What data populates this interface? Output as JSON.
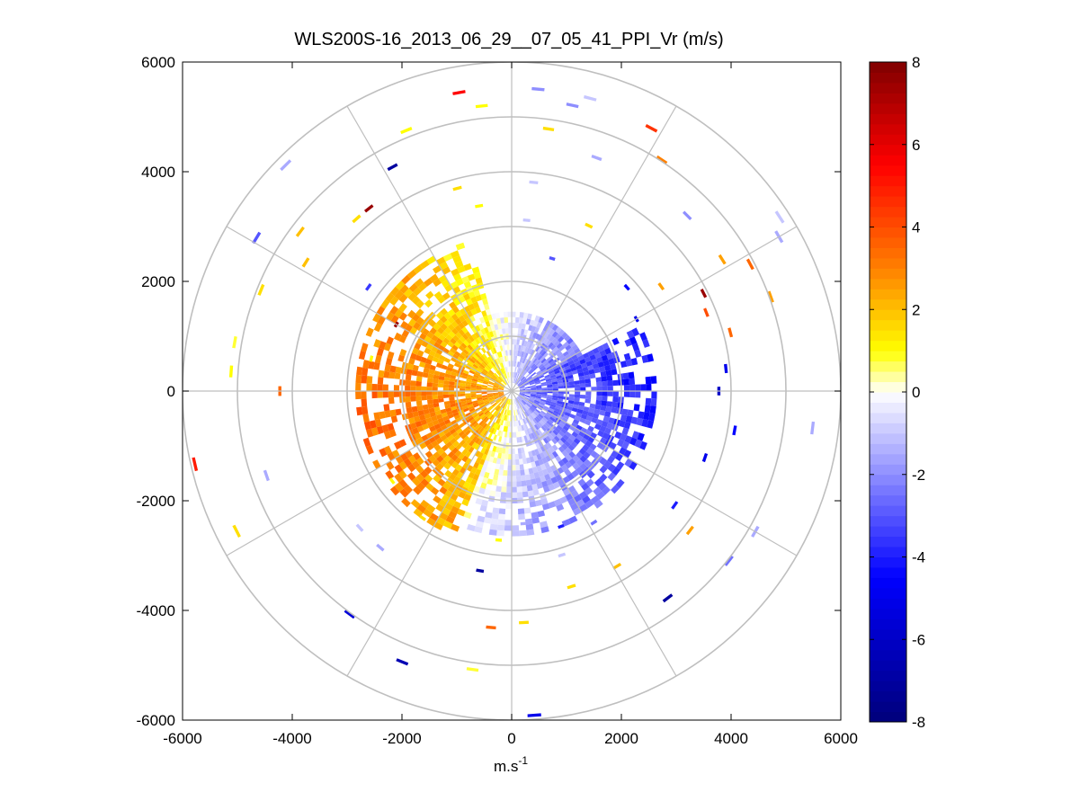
{
  "chart_data": {
    "type": "heatmap",
    "subtype": "polar-ppi",
    "title": "WLS200S-16_2013_06_29__07_05_41_PPI_Vr (m/s)",
    "xlabel": "m.s",
    "xlabel_superscript": "-1",
    "ylabel": "",
    "xlim": [
      -6000,
      6000
    ],
    "ylim": [
      -6000,
      6000
    ],
    "x_ticks": [
      "-6000",
      "-4000",
      "-2000",
      "0",
      "2000",
      "4000",
      "6000"
    ],
    "y_ticks": [
      "6000",
      "4000",
      "2000",
      "0",
      "-2000",
      "-4000",
      "-6000"
    ],
    "x_tick_values": [
      -6000,
      -4000,
      -2000,
      0,
      2000,
      4000,
      6000
    ],
    "y_tick_values": [
      6000,
      4000,
      2000,
      0,
      -2000,
      -4000,
      -6000
    ],
    "polar_grid": {
      "ring_radii": [
        1000,
        2000,
        3000,
        4000,
        5000,
        6000
      ],
      "spoke_angles_deg": [
        0,
        30,
        60,
        90,
        120,
        150,
        180,
        210,
        240,
        270,
        300,
        330
      ],
      "max_range": 6000
    },
    "colorbar": {
      "range": [
        -8,
        8
      ],
      "ticks": [
        "8",
        "6",
        "4",
        "2",
        "0",
        "-2",
        "-4",
        "-6",
        "-8"
      ],
      "tick_values": [
        8,
        6,
        4,
        2,
        0,
        -2,
        -4,
        -6,
        -8
      ],
      "colormap": [
        "#00007a",
        "#0000ff",
        "#ffffff",
        "#ffff00",
        "#ff8000",
        "#ff0000",
        "#800000"
      ]
    },
    "sparse_cells": [
      {
        "az": 28,
        "r": 5400,
        "v": 4.5
      },
      {
        "az": 33,
        "r": 5000,
        "v": 3.0
      },
      {
        "az": 45,
        "r": 4500,
        "v": -2.0
      },
      {
        "az": 58,
        "r": 4500,
        "v": 2.5
      },
      {
        "az": 55,
        "r": 3300,
        "v": 2.5
      },
      {
        "az": 62,
        "r": 4900,
        "v": 3.5
      },
      {
        "az": 63,
        "r": 3900,
        "v": 7.5
      },
      {
        "az": 70,
        "r": 5000,
        "v": 2.5
      },
      {
        "az": 68,
        "r": 3800,
        "v": 4.0
      },
      {
        "az": 75,
        "r": 4100,
        "v": 3.5
      },
      {
        "az": 60,
        "r": 5600,
        "v": -1.5
      },
      {
        "az": 57,
        "r": 5800,
        "v": -1.0
      },
      {
        "az": 90,
        "r": 3750,
        "v": -6.0
      },
      {
        "az": 84,
        "r": 3900,
        "v": -5.0
      },
      {
        "az": 100,
        "r": 4100,
        "v": -4.5
      },
      {
        "az": 97,
        "r": 5500,
        "v": -1.5
      },
      {
        "az": 109,
        "r": 3700,
        "v": -5.0
      },
      {
        "az": 125,
        "r": 3600,
        "v": -4.0
      },
      {
        "az": 128,
        "r": 4100,
        "v": 2.5
      },
      {
        "az": 120,
        "r": 5100,
        "v": -1.5
      },
      {
        "az": 128,
        "r": 5000,
        "v": -2.5
      },
      {
        "az": 143,
        "r": 4700,
        "v": -7.0
      },
      {
        "az": 149,
        "r": 3700,
        "v": 2.0
      },
      {
        "az": 163,
        "r": 3700,
        "v": 1.5
      },
      {
        "az": 163,
        "r": 3100,
        "v": -1.0
      },
      {
        "az": 176,
        "r": 5900,
        "v": -5.0
      },
      {
        "az": 177,
        "r": 4200,
        "v": 1.5
      },
      {
        "az": 185,
        "r": 4300,
        "v": 3.5
      },
      {
        "az": 188,
        "r": 5100,
        "v": 0.8
      },
      {
        "az": 190,
        "r": 3300,
        "v": -7.0
      },
      {
        "az": 202,
        "r": 5300,
        "v": -6.5
      },
      {
        "az": 216,
        "r": 5000,
        "v": -5.5
      },
      {
        "az": 220,
        "r": 3700,
        "v": -1.5
      },
      {
        "az": 228,
        "r": 3700,
        "v": -1.0
      },
      {
        "az": 233,
        "r": 2700,
        "v": 1.0
      },
      {
        "az": 243,
        "r": 5600,
        "v": 1.5
      },
      {
        "az": 251,
        "r": 4700,
        "v": -1.5
      },
      {
        "az": 257,
        "r": 5900,
        "v": 5.0
      },
      {
        "az": 270,
        "r": 4200,
        "v": 3.5
      },
      {
        "az": 274,
        "r": 5100,
        "v": 1.0
      },
      {
        "az": 280,
        "r": 5100,
        "v": 0.8
      },
      {
        "az": 292,
        "r": 4900,
        "v": 1.5
      },
      {
        "az": 301,
        "r": 5400,
        "v": -3.0
      },
      {
        "az": 302,
        "r": 4400,
        "v": 2.0
      },
      {
        "az": 307,
        "r": 4800,
        "v": 2.0
      },
      {
        "az": 306,
        "r": 3200,
        "v": -3.5
      },
      {
        "az": 318,
        "r": 4200,
        "v": 1.5
      },
      {
        "az": 315,
        "r": 5800,
        "v": -1.5
      },
      {
        "az": 322,
        "r": 4200,
        "v": 7.5
      },
      {
        "az": 332,
        "r": 4600,
        "v": -7.0
      },
      {
        "az": 338,
        "r": 5100,
        "v": 1.0
      },
      {
        "az": 350,
        "r": 5500,
        "v": 5.5
      },
      {
        "az": 354,
        "r": 5200,
        "v": 1.0
      },
      {
        "az": 5,
        "r": 5500,
        "v": -2.0
      },
      {
        "az": 15,
        "r": 5500,
        "v": -1.0
      },
      {
        "az": 12,
        "r": 5300,
        "v": -2.0
      },
      {
        "az": 20,
        "r": 4500,
        "v": -1.5
      },
      {
        "az": 8,
        "r": 4800,
        "v": 1.5
      },
      {
        "az": 6,
        "r": 3800,
        "v": -1.0
      },
      {
        "az": 5,
        "r": 3100,
        "v": -1.0
      },
      {
        "az": 25,
        "r": 3300,
        "v": 1.5
      },
      {
        "az": 17,
        "r": 2500,
        "v": -3.0
      },
      {
        "az": 345,
        "r": 3800,
        "v": 1.5
      },
      {
        "az": 350,
        "r": 3400,
        "v": 1.0
      },
      {
        "az": 300,
        "r": 2400,
        "v": 7.5
      },
      {
        "az": 283,
        "r": 2600,
        "v": 1.0
      },
      {
        "az": 160,
        "r": 2600,
        "v": -4.0
      },
      {
        "az": 175,
        "r": 2400,
        "v": -1.5
      },
      {
        "az": 148,
        "r": 2800,
        "v": -2.5
      },
      {
        "az": 60,
        "r": 2600,
        "v": -5.0
      },
      {
        "az": 48,
        "r": 2800,
        "v": -4.5
      },
      {
        "az": 215,
        "r": 2800,
        "v": 1.5
      },
      {
        "az": 185,
        "r": 2700,
        "v": 1.0
      }
    ],
    "description_of_dense_field": "Inner disk (r < ~2800 m) filled with radial velocities: positive (yellow/orange, 0.5-2.5 m/s) west/north-west sector, negative (light to dark blue, -1 to -4.5 m/s) east/south-east sector, weak values near zero along south and north."
  }
}
